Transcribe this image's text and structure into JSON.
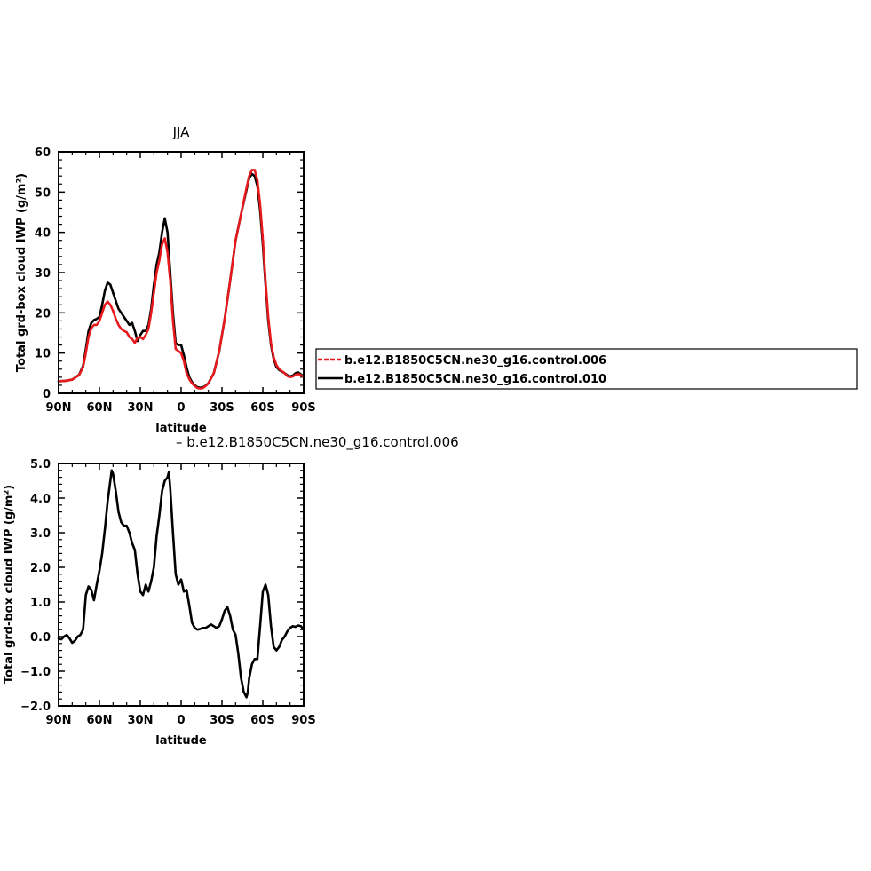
{
  "chart_data": [
    {
      "type": "line",
      "title": "JJA",
      "xlabel": "latitude",
      "ylabel": "Total grd-box cloud IWP (g/m²)",
      "xlim": [
        90,
        -90
      ],
      "ylim": [
        0,
        60
      ],
      "x_ticks": [
        90,
        60,
        30,
        0,
        -30,
        -60,
        -90
      ],
      "x_tick_labels": [
        "90N",
        "60N",
        "30N",
        "0",
        "30S",
        "60S",
        "90S"
      ],
      "y_ticks": [
        0,
        10,
        20,
        30,
        40,
        50,
        60
      ],
      "y_tick_labels": [
        "0",
        "10",
        "20",
        "30",
        "40",
        "50",
        "60"
      ],
      "legend": "right",
      "series": [
        {
          "name": "b.e12.B1850C5CN.ne30_g16.control.006",
          "color": "#e8191c",
          "style": "dashed",
          "x": [
            90,
            85,
            80,
            75,
            72,
            70,
            68,
            66,
            64,
            62,
            60,
            58,
            56,
            54,
            52,
            50,
            48,
            46,
            44,
            42,
            40,
            38,
            36,
            34,
            32,
            30,
            28,
            26,
            24,
            22,
            20,
            18,
            16,
            14,
            12,
            10,
            8,
            6,
            4,
            2,
            0,
            -2,
            -4,
            -6,
            -8,
            -10,
            -12,
            -14,
            -16,
            -18,
            -20,
            -24,
            -28,
            -32,
            -36,
            -40,
            -44,
            -48,
            -50,
            -52,
            -54,
            -56,
            -58,
            -60,
            -62,
            -64,
            -66,
            -68,
            -70,
            -72,
            -74,
            -76,
            -78,
            -80,
            -82,
            -84,
            -86,
            -88,
            -90
          ],
          "values": [
            3.0,
            3.1,
            3.4,
            4.5,
            6.5,
            10.0,
            14.0,
            16.2,
            17.0,
            17.0,
            18.0,
            20.0,
            22.0,
            22.8,
            22.0,
            20.5,
            18.5,
            17.0,
            16.0,
            15.5,
            15.2,
            14.0,
            13.5,
            12.5,
            13.8,
            14.0,
            13.5,
            14.5,
            16.0,
            20.0,
            25.0,
            30.0,
            33.0,
            37.0,
            38.5,
            35.0,
            28.0,
            18.0,
            11.0,
            10.5,
            10.0,
            8.0,
            5.0,
            3.5,
            2.5,
            1.8,
            1.3,
            1.2,
            1.3,
            1.8,
            2.5,
            5.0,
            10.5,
            18.5,
            28.0,
            38.0,
            44.5,
            51.0,
            54.0,
            55.5,
            55.5,
            53.0,
            47.0,
            38.5,
            28.0,
            19.0,
            12.5,
            9.0,
            7.0,
            6.0,
            5.5,
            5.0,
            4.3,
            4.0,
            4.2,
            4.6,
            4.8,
            4.5,
            4.0
          ]
        },
        {
          "name": "b.e12.B1850C5CN.ne30_g16.control.010",
          "color": "#000000",
          "style": "solid",
          "x": [
            90,
            85,
            80,
            75,
            72,
            70,
            68,
            66,
            64,
            62,
            60,
            58,
            56,
            54,
            52,
            50,
            48,
            46,
            44,
            42,
            40,
            38,
            36,
            34,
            32,
            30,
            28,
            26,
            24,
            22,
            20,
            18,
            16,
            14,
            12,
            10,
            8,
            6,
            4,
            2,
            0,
            -2,
            -4,
            -6,
            -8,
            -10,
            -12,
            -14,
            -16,
            -18,
            -20,
            -24,
            -28,
            -32,
            -36,
            -40,
            -44,
            -48,
            -50,
            -52,
            -54,
            -56,
            -58,
            -60,
            -62,
            -64,
            -66,
            -68,
            -70,
            -72,
            -74,
            -76,
            -78,
            -80,
            -82,
            -84,
            -86,
            -88,
            -90
          ],
          "values": [
            3.0,
            3.1,
            3.4,
            4.6,
            6.8,
            11.0,
            15.5,
            17.5,
            18.2,
            18.5,
            19.0,
            22.0,
            25.5,
            27.5,
            27.0,
            25.0,
            23.0,
            21.0,
            20.0,
            19.0,
            18.0,
            17.0,
            17.5,
            15.5,
            13.0,
            14.5,
            15.5,
            15.5,
            17.0,
            21.0,
            27.0,
            32.0,
            35.0,
            40.0,
            43.5,
            40.0,
            30.0,
            20.0,
            12.5,
            12.0,
            12.0,
            9.5,
            6.5,
            4.0,
            2.8,
            2.0,
            1.5,
            1.4,
            1.5,
            1.9,
            2.5,
            5.0,
            10.5,
            18.5,
            28.0,
            38.0,
            44.5,
            50.5,
            53.5,
            54.5,
            54.0,
            51.5,
            45.5,
            37.0,
            27.0,
            18.0,
            12.0,
            8.5,
            6.5,
            5.8,
            5.4,
            5.0,
            4.5,
            4.2,
            4.4,
            5.0,
            5.2,
            4.7,
            4.2
          ]
        }
      ]
    },
    {
      "type": "line",
      "title": "– b.e12.B1850C5CN.ne30_g16.control.006",
      "xlabel": "latitude",
      "ylabel": "Total grd-box cloud IWP (g/m²)",
      "xlim": [
        90,
        -90
      ],
      "ylim": [
        -2.0,
        5.0
      ],
      "x_ticks": [
        90,
        60,
        30,
        0,
        -30,
        -60,
        -90
      ],
      "x_tick_labels": [
        "90N",
        "60N",
        "30N",
        "0",
        "30S",
        "60S",
        "90S"
      ],
      "y_ticks": [
        -2.0,
        -1.0,
        0.0,
        1.0,
        2.0,
        3.0,
        4.0,
        5.0
      ],
      "y_tick_labels": [
        "−2.0",
        "−1.0",
        "0.0",
        "1.0",
        "2.0",
        "3.0",
        "4.0",
        "5.0"
      ],
      "series": [
        {
          "color": "#000000",
          "style": "solid",
          "x": [
            90,
            88,
            86,
            84,
            82,
            80,
            78,
            76,
            74,
            72,
            70,
            68,
            66,
            64,
            62,
            60,
            58,
            56,
            54,
            52,
            51,
            50,
            48,
            46,
            44,
            42,
            40,
            38,
            36,
            34,
            32,
            30,
            28,
            26,
            24,
            22,
            20,
            18,
            16,
            14,
            12,
            10,
            9,
            8,
            6,
            4,
            2,
            0,
            -2,
            -4,
            -6,
            -8,
            -10,
            -12,
            -14,
            -16,
            -18,
            -20,
            -22,
            -24,
            -26,
            -28,
            -30,
            -32,
            -34,
            -36,
            -38,
            -40,
            -42,
            -44,
            -46,
            -48,
            -49,
            -50,
            -52,
            -54,
            -56,
            -58,
            -60,
            -62,
            -64,
            -66,
            -68,
            -70,
            -72,
            -74,
            -76,
            -78,
            -80,
            -82,
            -84,
            -86,
            -88,
            -90
          ],
          "values": [
            -0.05,
            -0.08,
            0.0,
            0.05,
            -0.05,
            -0.18,
            -0.12,
            0.0,
            0.05,
            0.2,
            1.2,
            1.45,
            1.35,
            1.05,
            1.5,
            1.9,
            2.4,
            3.1,
            3.9,
            4.5,
            4.8,
            4.7,
            4.2,
            3.6,
            3.3,
            3.2,
            3.2,
            3.0,
            2.7,
            2.5,
            1.8,
            1.3,
            1.2,
            1.5,
            1.3,
            1.6,
            2.0,
            2.9,
            3.5,
            4.2,
            4.5,
            4.6,
            4.75,
            4.3,
            3.0,
            1.8,
            1.5,
            1.65,
            1.3,
            1.35,
            0.9,
            0.4,
            0.25,
            0.2,
            0.22,
            0.25,
            0.25,
            0.3,
            0.35,
            0.3,
            0.25,
            0.3,
            0.5,
            0.75,
            0.85,
            0.6,
            0.2,
            0.05,
            -0.5,
            -1.2,
            -1.6,
            -1.75,
            -1.6,
            -1.2,
            -0.8,
            -0.65,
            -0.65,
            0.3,
            1.3,
            1.5,
            1.2,
            0.3,
            -0.3,
            -0.4,
            -0.3,
            -0.1,
            0.0,
            0.15,
            0.25,
            0.3,
            0.28,
            0.32,
            0.3,
            0.2
          ]
        }
      ]
    }
  ]
}
